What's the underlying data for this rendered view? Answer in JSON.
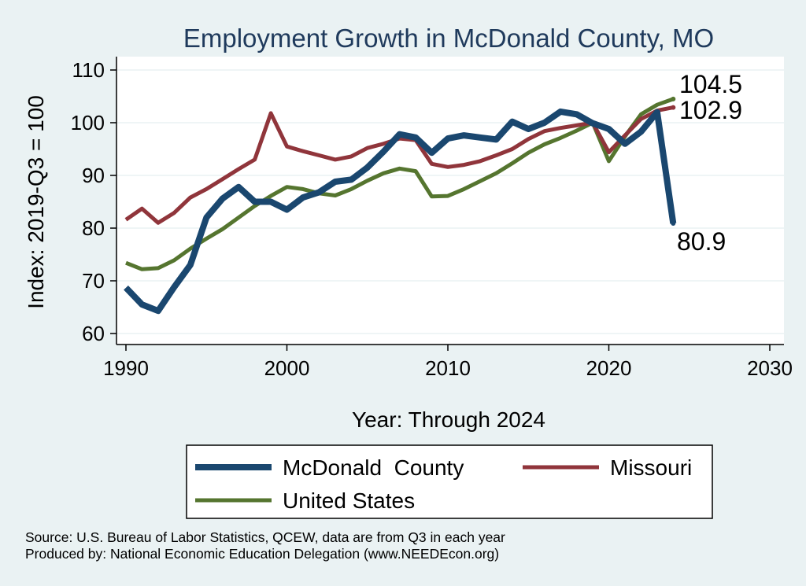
{
  "chart_data": {
    "type": "line",
    "title": "Employment Growth in McDonald County, MO",
    "xlabel": "Year: Through 2024",
    "ylabel": "Index: 2019-Q3 = 100",
    "xlim": [
      1990,
      2030
    ],
    "ylim": [
      58,
      113
    ],
    "xticks": [
      "1990",
      "2000",
      "2010",
      "2020",
      "2030"
    ],
    "yticks": [
      "60",
      "70",
      "80",
      "90",
      "100",
      "110"
    ],
    "grid": true,
    "legend_position": "bottom",
    "x": [
      1990,
      1991,
      1992,
      1993,
      1994,
      1995,
      1996,
      1997,
      1998,
      1999,
      2000,
      2001,
      2002,
      2003,
      2004,
      2005,
      2006,
      2007,
      2008,
      2009,
      2010,
      2011,
      2012,
      2013,
      2014,
      2015,
      2016,
      2017,
      2018,
      2019,
      2020,
      2021,
      2022,
      2023,
      2024
    ],
    "series": [
      {
        "name": "McDonald  County",
        "color": "#1a476f",
        "values": [
          68.7,
          65.5,
          64.3,
          68.8,
          73.0,
          82.0,
          85.6,
          87.8,
          85.0,
          85.0,
          83.5,
          85.8,
          86.8,
          88.8,
          89.2,
          91.5,
          94.5,
          97.8,
          97.2,
          94.3,
          97.0,
          97.6,
          97.2,
          96.8,
          100.2,
          98.8,
          100.0,
          102.1,
          101.6,
          99.9,
          98.8,
          96.0,
          98.3,
          102.0,
          80.9
        ]
      },
      {
        "name": "Missouri",
        "color": "#90353b",
        "values": [
          81.6,
          83.7,
          81.0,
          82.9,
          85.8,
          87.4,
          89.3,
          91.2,
          93.0,
          101.8,
          95.5,
          94.6,
          93.8,
          93.0,
          93.6,
          95.2,
          96.0,
          97.0,
          96.7,
          92.2,
          91.6,
          92.0,
          92.7,
          93.8,
          95.0,
          96.9,
          98.4,
          99.0,
          99.5,
          100.0,
          94.4,
          97.6,
          100.7,
          102.3,
          102.9
        ]
      },
      {
        "name": "United States",
        "color": "#55752f",
        "values": [
          73.4,
          72.2,
          72.4,
          73.9,
          76.1,
          78.0,
          79.8,
          82.0,
          84.2,
          86.1,
          87.8,
          87.4,
          86.6,
          86.2,
          87.4,
          89.0,
          90.4,
          91.3,
          90.8,
          86.0,
          86.1,
          87.4,
          88.9,
          90.4,
          92.3,
          94.3,
          95.9,
          97.1,
          98.5,
          100.0,
          92.7,
          97.4,
          101.6,
          103.4,
          104.5
        ]
      }
    ],
    "end_labels": [
      {
        "series": "United States",
        "text": "104.5"
      },
      {
        "series": "Missouri",
        "text": "102.9"
      },
      {
        "series": "McDonald  County",
        "text": "80.9"
      }
    ]
  },
  "footer": {
    "source_line": "Source: U.S. Bureau of Labor Statistics, QCEW, data are from Q3 in each year",
    "produced_line": "Produced by: National Economic Education Delegation (www.NEEDEcon.org)"
  }
}
